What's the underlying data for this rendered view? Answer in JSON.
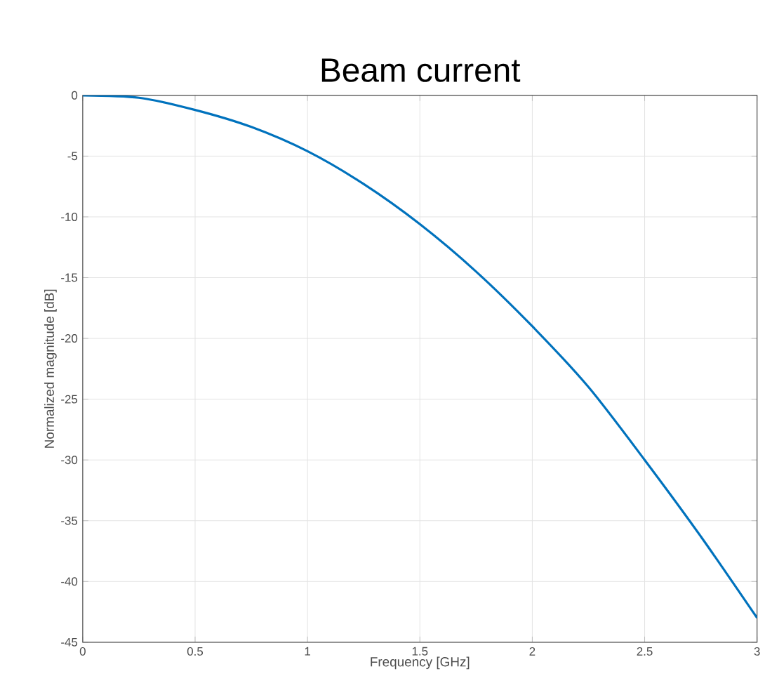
{
  "chart_data": {
    "type": "line",
    "title": "Beam current",
    "xlabel": "Frequency [GHz]",
    "ylabel": "Normalized magnitude [dB]",
    "x": [
      0,
      0.25,
      0.5,
      0.75,
      1,
      1.25,
      1.5,
      1.75,
      2,
      2.25,
      2.5,
      2.75,
      3
    ],
    "series": [
      {
        "color": "#0072bd",
        "values": [
          0,
          -0.2,
          -1.2,
          -2.6,
          -4.6,
          -7.3,
          -10.6,
          -14.5,
          -19,
          -24,
          -30,
          -36.3,
          -43
        ]
      }
    ],
    "xlim": [
      0,
      3
    ],
    "ylim": [
      -45,
      0
    ],
    "xticks": [
      0,
      0.5,
      1,
      1.5,
      2,
      2.5,
      3
    ],
    "yticks": [
      -45,
      -40,
      -35,
      -30,
      -25,
      -20,
      -15,
      -10,
      -5,
      0
    ],
    "grid": true,
    "marker": "none",
    "line_style": "solid"
  }
}
